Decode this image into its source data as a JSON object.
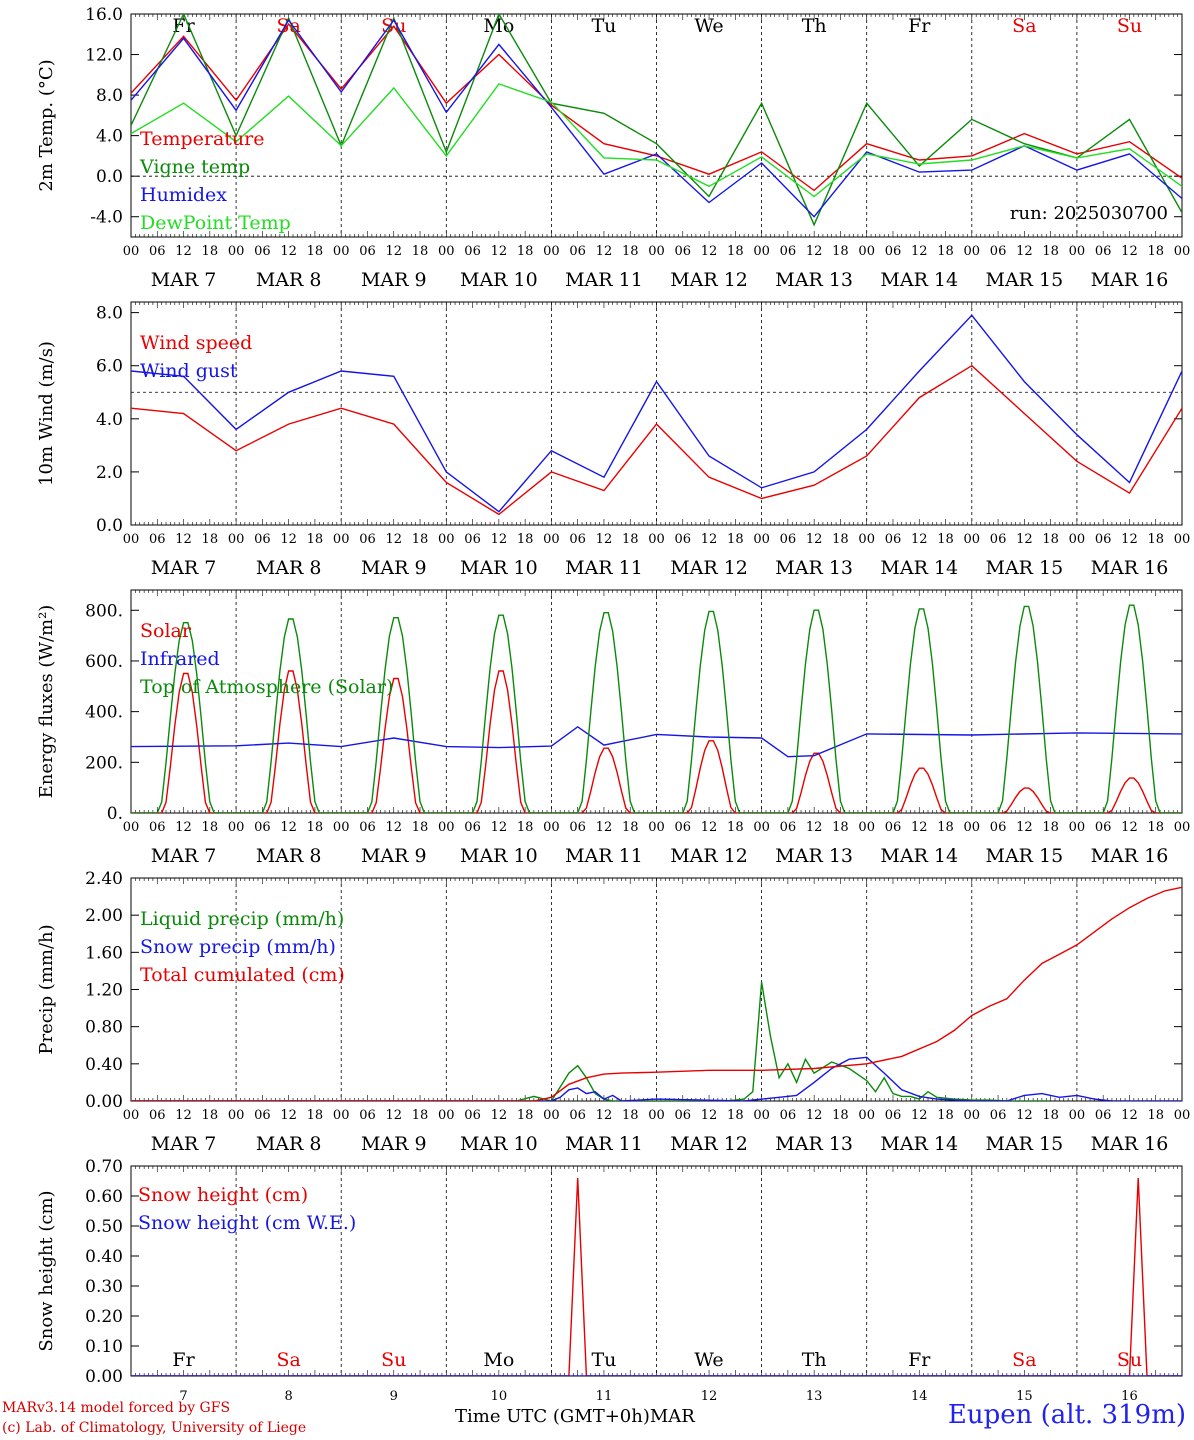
{
  "run_label": "run: 2025030700",
  "station": "Eupen (alt. 319m)",
  "credits": {
    "line1": "MARv3.14 model forced by GFS",
    "line2": "(c) Lab. of Climatology, University of Liege"
  },
  "x_axis_title": "Time UTC (GMT+0h)",
  "month_label": "MAR",
  "hour_ticks": [
    "00",
    "06",
    "12",
    "18"
  ],
  "days": [
    {
      "num": "7",
      "name": "Fr",
      "weekend": false
    },
    {
      "num": "8",
      "name": "Sa",
      "weekend": true
    },
    {
      "num": "9",
      "name": "Su",
      "weekend": true
    },
    {
      "num": "10",
      "name": "Mo",
      "weekend": false
    },
    {
      "num": "11",
      "name": "Tu",
      "weekend": false
    },
    {
      "num": "12",
      "name": "We",
      "weekend": false
    },
    {
      "num": "13",
      "name": "Th",
      "weekend": false
    },
    {
      "num": "14",
      "name": "Fr",
      "weekend": false
    },
    {
      "num": "15",
      "name": "Sa",
      "weekend": true
    },
    {
      "num": "16",
      "name": "Su",
      "weekend": true
    }
  ],
  "colors": {
    "red": "#e80000",
    "dark_green": "#0a8a0a",
    "blue": "#1515e6",
    "light_green": "#22dd22",
    "weekend": "#e80000"
  },
  "chart_data": [
    {
      "type": "line",
      "ylabel": "2m Temp. (°C)",
      "ylim": [
        -6,
        16
      ],
      "yticks": [
        "16.0",
        "12.0",
        "8.0",
        "4.0",
        "0.0",
        "-4.0"
      ],
      "ytick_values": [
        16,
        12,
        8,
        4,
        0,
        -4
      ],
      "ref_line": 0,
      "show_day_names": true,
      "x": [
        0,
        12,
        24,
        36,
        48,
        60,
        72,
        84,
        96,
        108,
        120,
        132,
        144,
        156,
        168,
        180,
        192,
        204,
        216,
        228,
        240
      ],
      "series": [
        {
          "name": "Temperature",
          "color": "#e80000",
          "values": [
            8.2,
            13.8,
            7.5,
            15.0,
            8.6,
            14.8,
            7.2,
            12.0,
            7.0,
            3.2,
            2.0,
            0.2,
            2.4,
            -1.4,
            3.2,
            1.6,
            2.0,
            4.2,
            2.2,
            3.4,
            -0.2
          ]
        },
        {
          "name": "Vigne temp",
          "color": "#0a8a0a",
          "values": [
            5.0,
            16.0,
            4.0,
            15.6,
            3.0,
            15.6,
            2.4,
            16.0,
            7.2,
            6.2,
            3.2,
            -2.0,
            7.2,
            -4.8,
            7.2,
            1.0,
            5.6,
            3.2,
            1.8,
            5.6,
            -3.6
          ]
        },
        {
          "name": "Humidex",
          "color": "#1515e6",
          "values": [
            7.5,
            13.6,
            6.5,
            15.4,
            8.3,
            15.4,
            6.3,
            13.0,
            6.8,
            0.2,
            2.2,
            -2.6,
            1.3,
            -4.0,
            2.4,
            0.4,
            0.6,
            3.0,
            0.6,
            2.2,
            -2.2
          ]
        },
        {
          "name": "DewPoint Temp",
          "color": "#22dd22",
          "values": [
            4.2,
            7.2,
            3.4,
            7.9,
            3.0,
            8.7,
            2.0,
            9.1,
            7.3,
            1.8,
            1.6,
            -1.0,
            1.9,
            -2.0,
            2.2,
            1.2,
            1.6,
            3.0,
            1.8,
            2.7,
            -1.0
          ]
        }
      ]
    },
    {
      "type": "line",
      "ylabel": "10m Wind (m/s)",
      "ylim": [
        0,
        8.4
      ],
      "yticks": [
        "8.0",
        "6.0",
        "4.0",
        "2.0",
        "0.0"
      ],
      "ytick_values": [
        8,
        6,
        4,
        2,
        0
      ],
      "ref_line": 5,
      "show_day_names": false,
      "x": [
        0,
        12,
        24,
        36,
        48,
        60,
        72,
        84,
        96,
        108,
        120,
        132,
        144,
        156,
        168,
        180,
        192,
        204,
        216,
        228,
        240
      ],
      "series": [
        {
          "name": "Wind speed",
          "color": "#e80000",
          "values": [
            4.4,
            4.2,
            2.8,
            3.8,
            4.4,
            3.8,
            1.6,
            0.4,
            2.0,
            1.3,
            3.8,
            1.8,
            1.0,
            1.5,
            2.6,
            4.8,
            6.0,
            4.2,
            2.4,
            1.2,
            4.4
          ]
        },
        {
          "name": "Wind gust",
          "color": "#1515e6",
          "values": [
            5.8,
            5.6,
            3.6,
            5.0,
            5.8,
            5.6,
            2.0,
            0.5,
            2.8,
            1.8,
            5.4,
            2.6,
            1.4,
            2.0,
            3.6,
            5.8,
            7.9,
            5.4,
            3.4,
            1.6,
            5.8
          ]
        }
      ]
    },
    {
      "type": "line",
      "ylabel": "Energy fluxes (W/m²)",
      "ylim": [
        0,
        880
      ],
      "yticks": [
        "800.",
        "600.",
        "400.",
        "200.",
        "0."
      ],
      "ytick_values": [
        800,
        600,
        400,
        200,
        0
      ],
      "show_day_names": false,
      "daily_peaks": {
        "Solar": [
          560,
          570,
          540,
          570,
          260,
          290,
          240,
          180,
          100,
          140
        ],
        "Top of Atmosphere (Solar)": [
          760,
          775,
          780,
          790,
          800,
          805,
          810,
          815,
          825,
          830
        ]
      },
      "series": [
        {
          "name": "Solar",
          "color": "#e80000"
        },
        {
          "name": "Infrared",
          "color": "#1515e6",
          "x": [
            0,
            24,
            36,
            48,
            60,
            72,
            84,
            96,
            102,
            108,
            120,
            132,
            144,
            150,
            156,
            168,
            192,
            216,
            240
          ],
          "values": [
            262,
            265,
            276,
            262,
            296,
            262,
            258,
            264,
            340,
            268,
            310,
            300,
            296,
            222,
            226,
            312,
            308,
            316,
            312
          ]
        },
        {
          "name": "Top of Atmosphere (Solar)",
          "color": "#0a8a0a"
        }
      ]
    },
    {
      "type": "line",
      "ylabel": "Precip (mm/h)",
      "ylim": [
        0,
        2.4
      ],
      "yticks": [
        "2.40",
        "2.00",
        "1.60",
        "1.20",
        "0.80",
        "0.40",
        "0.00"
      ],
      "ytick_values": [
        2.4,
        2.0,
        1.6,
        1.2,
        0.8,
        0.4,
        0.0
      ],
      "show_day_names": false,
      "series": [
        {
          "name": "Liquid precip (mm/h)",
          "color": "#0a8a0a",
          "x": [
            0,
            88,
            92,
            96,
            100,
            102,
            104,
            106,
            108,
            110,
            112,
            114,
            116,
            120,
            128,
            136,
            140,
            142,
            144,
            146,
            148,
            150,
            152,
            154,
            156,
            160,
            164,
            168,
            170,
            172,
            174,
            176,
            178,
            180,
            182,
            184,
            188,
            192,
            196,
            200,
            204,
            208,
            210
          ],
          "values": [
            0,
            0,
            0.05,
            0,
            0.3,
            0.38,
            0.25,
            0.08,
            0.02,
            0,
            0,
            0,
            0,
            0,
            0,
            0,
            0.02,
            0.1,
            1.28,
            0.7,
            0.25,
            0.4,
            0.2,
            0.45,
            0.3,
            0.42,
            0.35,
            0.22,
            0.1,
            0.25,
            0.08,
            0.05,
            0.05,
            0.02,
            0.1,
            0.04,
            0.02,
            0.01,
            0.01,
            0,
            0,
            0,
            0
          ]
        },
        {
          "name": "Snow precip (mm/h)",
          "color": "#1515e6",
          "x": [
            0,
            96,
            98,
            100,
            102,
            104,
            106,
            108,
            110,
            112,
            120,
            140,
            148,
            152,
            156,
            160,
            164,
            168,
            172,
            176,
            180,
            184,
            188,
            192,
            196,
            200,
            204,
            208,
            212,
            216,
            220,
            224,
            228,
            232,
            236,
            240
          ],
          "values": [
            0,
            0,
            0.04,
            0.12,
            0.14,
            0.08,
            0.1,
            0.02,
            0.06,
            0,
            0.02,
            0,
            0.04,
            0.06,
            0.2,
            0.35,
            0.45,
            0.47,
            0.3,
            0.12,
            0.05,
            0.02,
            0.01,
            0,
            0,
            0,
            0.06,
            0.08,
            0.04,
            0.06,
            0.02,
            0,
            0,
            0,
            0,
            0
          ]
        },
        {
          "name": "Total cumulated (cm)",
          "color": "#e80000",
          "x": [
            0,
            92,
            96,
            100,
            104,
            108,
            112,
            120,
            132,
            144,
            156,
            168,
            176,
            184,
            188,
            192,
            196,
            200,
            204,
            208,
            212,
            216,
            220,
            224,
            228,
            232,
            236,
            240
          ],
          "values": [
            0,
            0,
            0.04,
            0.18,
            0.25,
            0.29,
            0.3,
            0.31,
            0.33,
            0.33,
            0.35,
            0.4,
            0.48,
            0.64,
            0.76,
            0.92,
            1.02,
            1.1,
            1.3,
            1.48,
            1.58,
            1.68,
            1.82,
            1.96,
            2.08,
            2.18,
            2.26,
            2.3
          ]
        }
      ]
    },
    {
      "type": "line",
      "ylabel": "Snow height (cm)",
      "ylim": [
        0,
        0.7
      ],
      "yticks": [
        "0.70",
        "0.60",
        "0.50",
        "0.40",
        "0.30",
        "0.20",
        "0.10",
        "0.00"
      ],
      "ytick_values": [
        0.7,
        0.6,
        0.5,
        0.4,
        0.3,
        0.2,
        0.1,
        0.0
      ],
      "show_day_names": true,
      "series": [
        {
          "name": "Snow height (cm)",
          "color": "#e80000",
          "x": [
            0,
            100,
            102,
            104,
            228,
            230,
            232,
            240
          ],
          "values": [
            0,
            0,
            0.66,
            0,
            0,
            0.66,
            0,
            0
          ]
        },
        {
          "name": "Snow height (cm W.E.)",
          "color": "#1515e6",
          "x": [
            0,
            240
          ],
          "values": [
            0,
            0
          ]
        }
      ]
    }
  ]
}
